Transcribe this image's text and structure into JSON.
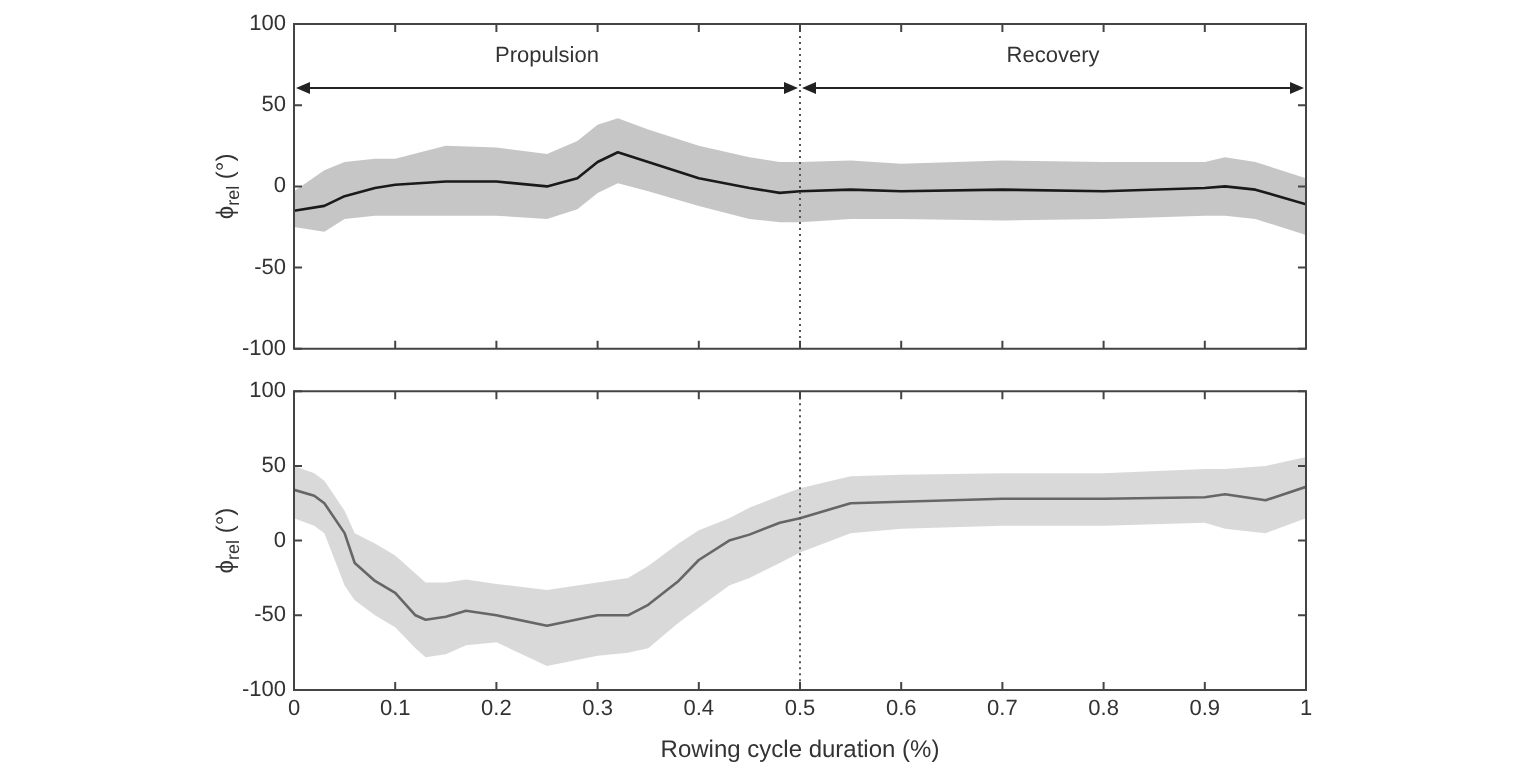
{
  "chart_data": [
    {
      "type": "line",
      "ylabel": "ϕ$_{rel}$ (°)",
      "xlim": [
        0,
        1
      ],
      "xticks": [
        0,
        0.1,
        0.2,
        0.3,
        0.4,
        0.5,
        0.6,
        0.7,
        0.8,
        0.9,
        1
      ],
      "ylim": [
        -100,
        100
      ],
      "yticks": [
        -100,
        -50,
        0,
        50,
        100
      ],
      "tick_labels": "y",
      "grid": false,
      "legend": false,
      "marker": "none",
      "line_style": "solid",
      "annotations": [
        "Propulsion",
        "Recovery"
      ],
      "ref_lines": [
        {
          "axis": "x",
          "value": 0.5,
          "color": "#555555",
          "line_style": "dotted"
        }
      ],
      "series": [
        {
          "color": "#1a1a1a",
          "x": [
            0,
            0.03,
            0.05,
            0.08,
            0.1,
            0.15,
            0.2,
            0.25,
            0.28,
            0.3,
            0.32,
            0.35,
            0.4,
            0.45,
            0.48,
            0.5,
            0.55,
            0.6,
            0.7,
            0.8,
            0.9,
            0.92,
            0.95,
            1
          ],
          "values": [
            -15,
            -12,
            -6,
            -1,
            1,
            3,
            3,
            0,
            5,
            15,
            21,
            15,
            5,
            -1,
            -4,
            -3,
            -2,
            -3,
            -2,
            -3,
            -1,
            0,
            -2,
            -11
          ],
          "upper": [
            -3,
            10,
            15,
            17,
            17,
            25,
            24,
            20,
            28,
            38,
            42,
            35,
            25,
            18,
            15,
            15,
            16,
            14,
            16,
            15,
            15,
            18,
            15,
            5
          ],
          "lower": [
            -25,
            -28,
            -20,
            -18,
            -18,
            -18,
            -18,
            -20,
            -14,
            -4,
            2,
            -3,
            -12,
            -20,
            -22,
            -22,
            -20,
            -20,
            -21,
            -20,
            -18,
            -18,
            -20,
            -30
          ]
        }
      ]
    },
    {
      "type": "line",
      "xlabel": "Rowing cycle duration (%)",
      "ylabel": "ϕ$_{rel}$ (°)",
      "xlim": [
        0,
        1
      ],
      "xticks": [
        0,
        0.1,
        0.2,
        0.3,
        0.4,
        0.5,
        0.6,
        0.7,
        0.8,
        0.9,
        1
      ],
      "ylim": [
        -100,
        100
      ],
      "yticks": [
        -100,
        -50,
        0,
        50,
        100
      ],
      "grid": false,
      "legend": false,
      "marker": "none",
      "line_style": "solid",
      "ref_lines": [
        {
          "axis": "x",
          "value": 0.5,
          "color": "#555555",
          "line_style": "dotted"
        }
      ],
      "series": [
        {
          "color": "#666666",
          "x": [
            0,
            0.02,
            0.03,
            0.05,
            0.06,
            0.08,
            0.1,
            0.12,
            0.13,
            0.15,
            0.17,
            0.2,
            0.25,
            0.3,
            0.33,
            0.35,
            0.38,
            0.4,
            0.43,
            0.45,
            0.48,
            0.5,
            0.55,
            0.6,
            0.7,
            0.8,
            0.9,
            0.92,
            0.96,
            1
          ],
          "values": [
            34,
            30,
            25,
            5,
            -15,
            -27,
            -35,
            -50,
            -53,
            -51,
            -47,
            -50,
            -57,
            -50,
            -50,
            -43,
            -27,
            -13,
            0,
            4,
            12,
            15,
            25,
            26,
            28,
            28,
            29,
            31,
            27,
            36
          ],
          "upper": [
            50,
            45,
            40,
            20,
            5,
            -2,
            -10,
            -22,
            -28,
            -28,
            -26,
            -29,
            -33,
            -28,
            -25,
            -17,
            -2,
            7,
            15,
            22,
            30,
            35,
            43,
            44,
            45,
            45,
            48,
            48,
            50,
            56
          ],
          "lower": [
            15,
            10,
            5,
            -30,
            -40,
            -50,
            -58,
            -72,
            -78,
            -76,
            -70,
            -68,
            -84,
            -77,
            -75,
            -72,
            -55,
            -45,
            -30,
            -25,
            -15,
            -8,
            5,
            8,
            10,
            10,
            12,
            8,
            5,
            15
          ]
        }
      ]
    }
  ]
}
